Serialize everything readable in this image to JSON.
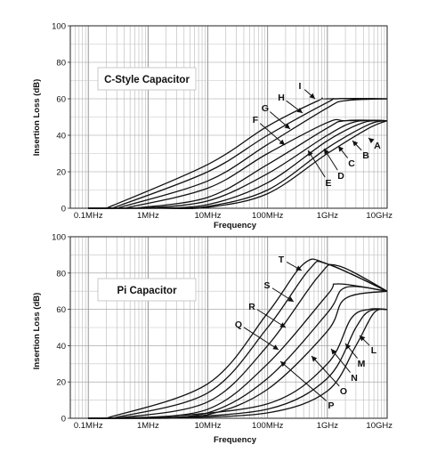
{
  "chart_data": [
    {
      "type": "line",
      "title": "C-Style Capacitor",
      "xlabel": "Frequency",
      "ylabel": "Insertion Loss (dB)",
      "x_scale": "log",
      "xlim": [
        "0.05MHz",
        "10GHz"
      ],
      "ylim": [
        0,
        100
      ],
      "x_tick_labels": [
        "0.1MHz",
        "1MHz",
        "10MHz",
        "100MHz",
        "1GHz",
        "10GHz"
      ],
      "y_tick_labels": [
        "0",
        "20",
        "40",
        "60",
        "80",
        "100"
      ],
      "grid": true,
      "legend": "none",
      "annotation_labels": [
        "A",
        "B",
        "C",
        "D",
        "E",
        "F",
        "G",
        "H",
        "I"
      ],
      "series": [
        {
          "name": "A",
          "x": [
            "2MHz",
            "10MHz",
            "100MHz",
            "1GHz",
            "5GHz",
            "10GHz"
          ],
          "y": [
            0,
            0.5,
            8,
            30,
            44,
            48
          ]
        },
        {
          "name": "B",
          "x": [
            "1.5MHz",
            "10MHz",
            "100MHz",
            "1GHz",
            "5GHz",
            "10GHz"
          ],
          "y": [
            0,
            1,
            10,
            33,
            46,
            48
          ]
        },
        {
          "name": "C",
          "x": [
            "1MHz",
            "10MHz",
            "100MHz",
            "1GHz",
            "4GHz",
            "10GHz"
          ],
          "y": [
            0,
            2,
            14,
            37,
            47,
            48
          ]
        },
        {
          "name": "D",
          "x": [
            "0.8MHz",
            "10MHz",
            "100MHz",
            "1GHz",
            "3GHz",
            "10GHz"
          ],
          "y": [
            0,
            4,
            19,
            40,
            47.5,
            48
          ]
        },
        {
          "name": "E",
          "x": [
            "0.6MHz",
            "10MHz",
            "100MHz",
            "1GHz",
            "2GHz",
            "10GHz"
          ],
          "y": [
            0,
            6,
            24,
            44,
            48,
            48
          ]
        },
        {
          "name": "F",
          "x": [
            "0.4MHz",
            "10MHz",
            "100MHz",
            "1GHz",
            "2GHz",
            "10GHz"
          ],
          "y": [
            0,
            11,
            30,
            47,
            48,
            48
          ]
        },
        {
          "name": "G",
          "x": [
            "0.3MHz",
            "10MHz",
            "100MHz",
            "1GHz",
            "2GHz",
            "10GHz"
          ],
          "y": [
            0,
            15,
            35,
            55,
            59,
            60
          ]
        },
        {
          "name": "H",
          "x": [
            "0.25MHz",
            "10MHz",
            "100MHz",
            "1GHz",
            "1.5GHz",
            "10GHz"
          ],
          "y": [
            0,
            20,
            40,
            58,
            60,
            60
          ]
        },
        {
          "name": "I",
          "x": [
            "0.2MHz",
            "10MHz",
            "100MHz",
            "700MHz",
            "1GHz",
            "10GHz"
          ],
          "y": [
            0,
            24,
            45,
            59,
            60,
            60
          ]
        }
      ]
    },
    {
      "type": "line",
      "title": "Pi Capacitor",
      "xlabel": "Frequency",
      "ylabel": "Insertion Loss (dB)",
      "x_scale": "log",
      "xlim": [
        "0.05MHz",
        "10GHz"
      ],
      "ylim": [
        0,
        100
      ],
      "x_tick_labels": [
        "0.1MHz",
        "1MHz",
        "10MHz",
        "100MHz",
        "1GHz",
        "10GHz"
      ],
      "y_tick_labels": [
        "0",
        "20",
        "40",
        "60",
        "80",
        "100"
      ],
      "grid": true,
      "legend": "none",
      "annotation_labels": [
        "L",
        "M",
        "N",
        "O",
        "P",
        "Q",
        "R",
        "S",
        "T"
      ],
      "series": [
        {
          "name": "L",
          "x": [
            "2MHz",
            "100MHz",
            "1GHz",
            "3GHz",
            "6GHz",
            "10GHz"
          ],
          "y": [
            0,
            3,
            15,
            40,
            58,
            60
          ]
        },
        {
          "name": "M",
          "x": [
            "1.5MHz",
            "100MHz",
            "1GHz",
            "3GHz",
            "5GHz",
            "10GHz"
          ],
          "y": [
            0,
            5,
            22,
            50,
            59,
            60
          ]
        },
        {
          "name": "N",
          "x": [
            "1MHz",
            "100MHz",
            "1GHz",
            "2.5GHz",
            "5GHz",
            "10GHz"
          ],
          "y": [
            0,
            8,
            30,
            55,
            60,
            60
          ]
        },
        {
          "name": "O",
          "x": [
            "0.8MHz",
            "10MHz",
            "100MHz",
            "1GHz",
            "2GHz",
            "10GHz"
          ],
          "y": [
            0,
            2,
            16,
            48,
            66,
            70
          ]
        },
        {
          "name": "P",
          "x": [
            "0.6MHz",
            "10MHz",
            "100MHz",
            "1GHz",
            "2GHz",
            "10GHz"
          ],
          "y": [
            0,
            3,
            22,
            58,
            72,
            70
          ]
        },
        {
          "name": "Q",
          "x": [
            "0.4MHz",
            "10MHz",
            "100MHz",
            "1GHz",
            "1.5GHz",
            "10GHz"
          ],
          "y": [
            0,
            5,
            30,
            68,
            74,
            70
          ]
        },
        {
          "name": "R",
          "x": [
            "0.3MHz",
            "10MHz",
            "100MHz",
            "700MHz",
            "1.5GHz",
            "10GHz"
          ],
          "y": [
            0,
            9,
            40,
            78,
            84,
            70
          ]
        },
        {
          "name": "S",
          "x": [
            "0.25MHz",
            "10MHz",
            "100MHz",
            "500MHz",
            "1GHz",
            "10GHz"
          ],
          "y": [
            0,
            14,
            50,
            82,
            85,
            70
          ]
        },
        {
          "name": "T",
          "x": [
            "0.2MHz",
            "10MHz",
            "100MHz",
            "400MHz",
            "1GHz",
            "10GHz"
          ],
          "y": [
            0,
            19,
            58,
            85,
            85,
            70
          ]
        }
      ]
    }
  ]
}
